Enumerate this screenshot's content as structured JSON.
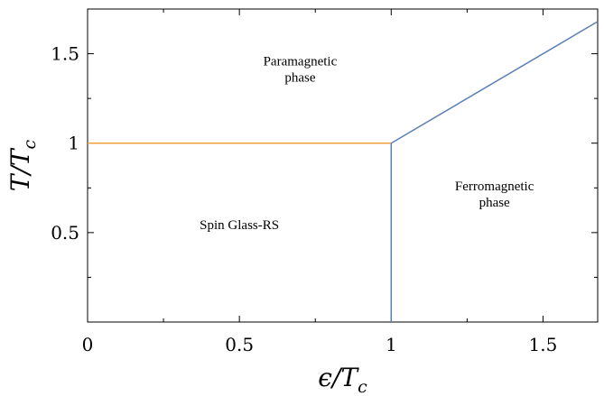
{
  "chart_data": {
    "type": "line",
    "xlabel": "ϵ/T",
    "xlabel_sub": "c",
    "ylabel": "T/T",
    "ylabel_sub": "c",
    "xlim": [
      0,
      1.68
    ],
    "ylim": [
      0,
      1.75
    ],
    "x_ticks": [
      0,
      0.5,
      1,
      1.5
    ],
    "x_tick_labels": [
      "0",
      "0.5",
      "1",
      "1.5"
    ],
    "y_ticks": [
      0.5,
      1,
      1.5
    ],
    "y_tick_labels": [
      "0.5",
      "1",
      "1.5"
    ],
    "grid": false,
    "series": [
      {
        "color": "#f0a040",
        "x": [
          0,
          1
        ],
        "y": [
          1,
          1
        ]
      },
      {
        "color": "#5a7fb5",
        "x": [
          1,
          1
        ],
        "y": [
          0,
          1
        ]
      },
      {
        "color": "#5a7fb5",
        "x": [
          1,
          1.68
        ],
        "y": [
          1,
          1.68
        ]
      }
    ],
    "annotations": [
      {
        "lines": [
          "Paramagnetic",
          "phase"
        ],
        "x": 0.7,
        "y": 1.39
      },
      {
        "lines": [
          "Spin Glass-RS"
        ],
        "x": 0.5,
        "y": 0.52
      },
      {
        "lines": [
          "Ferromagnetic",
          "phase"
        ],
        "x": 1.34,
        "y": 0.69
      }
    ]
  }
}
